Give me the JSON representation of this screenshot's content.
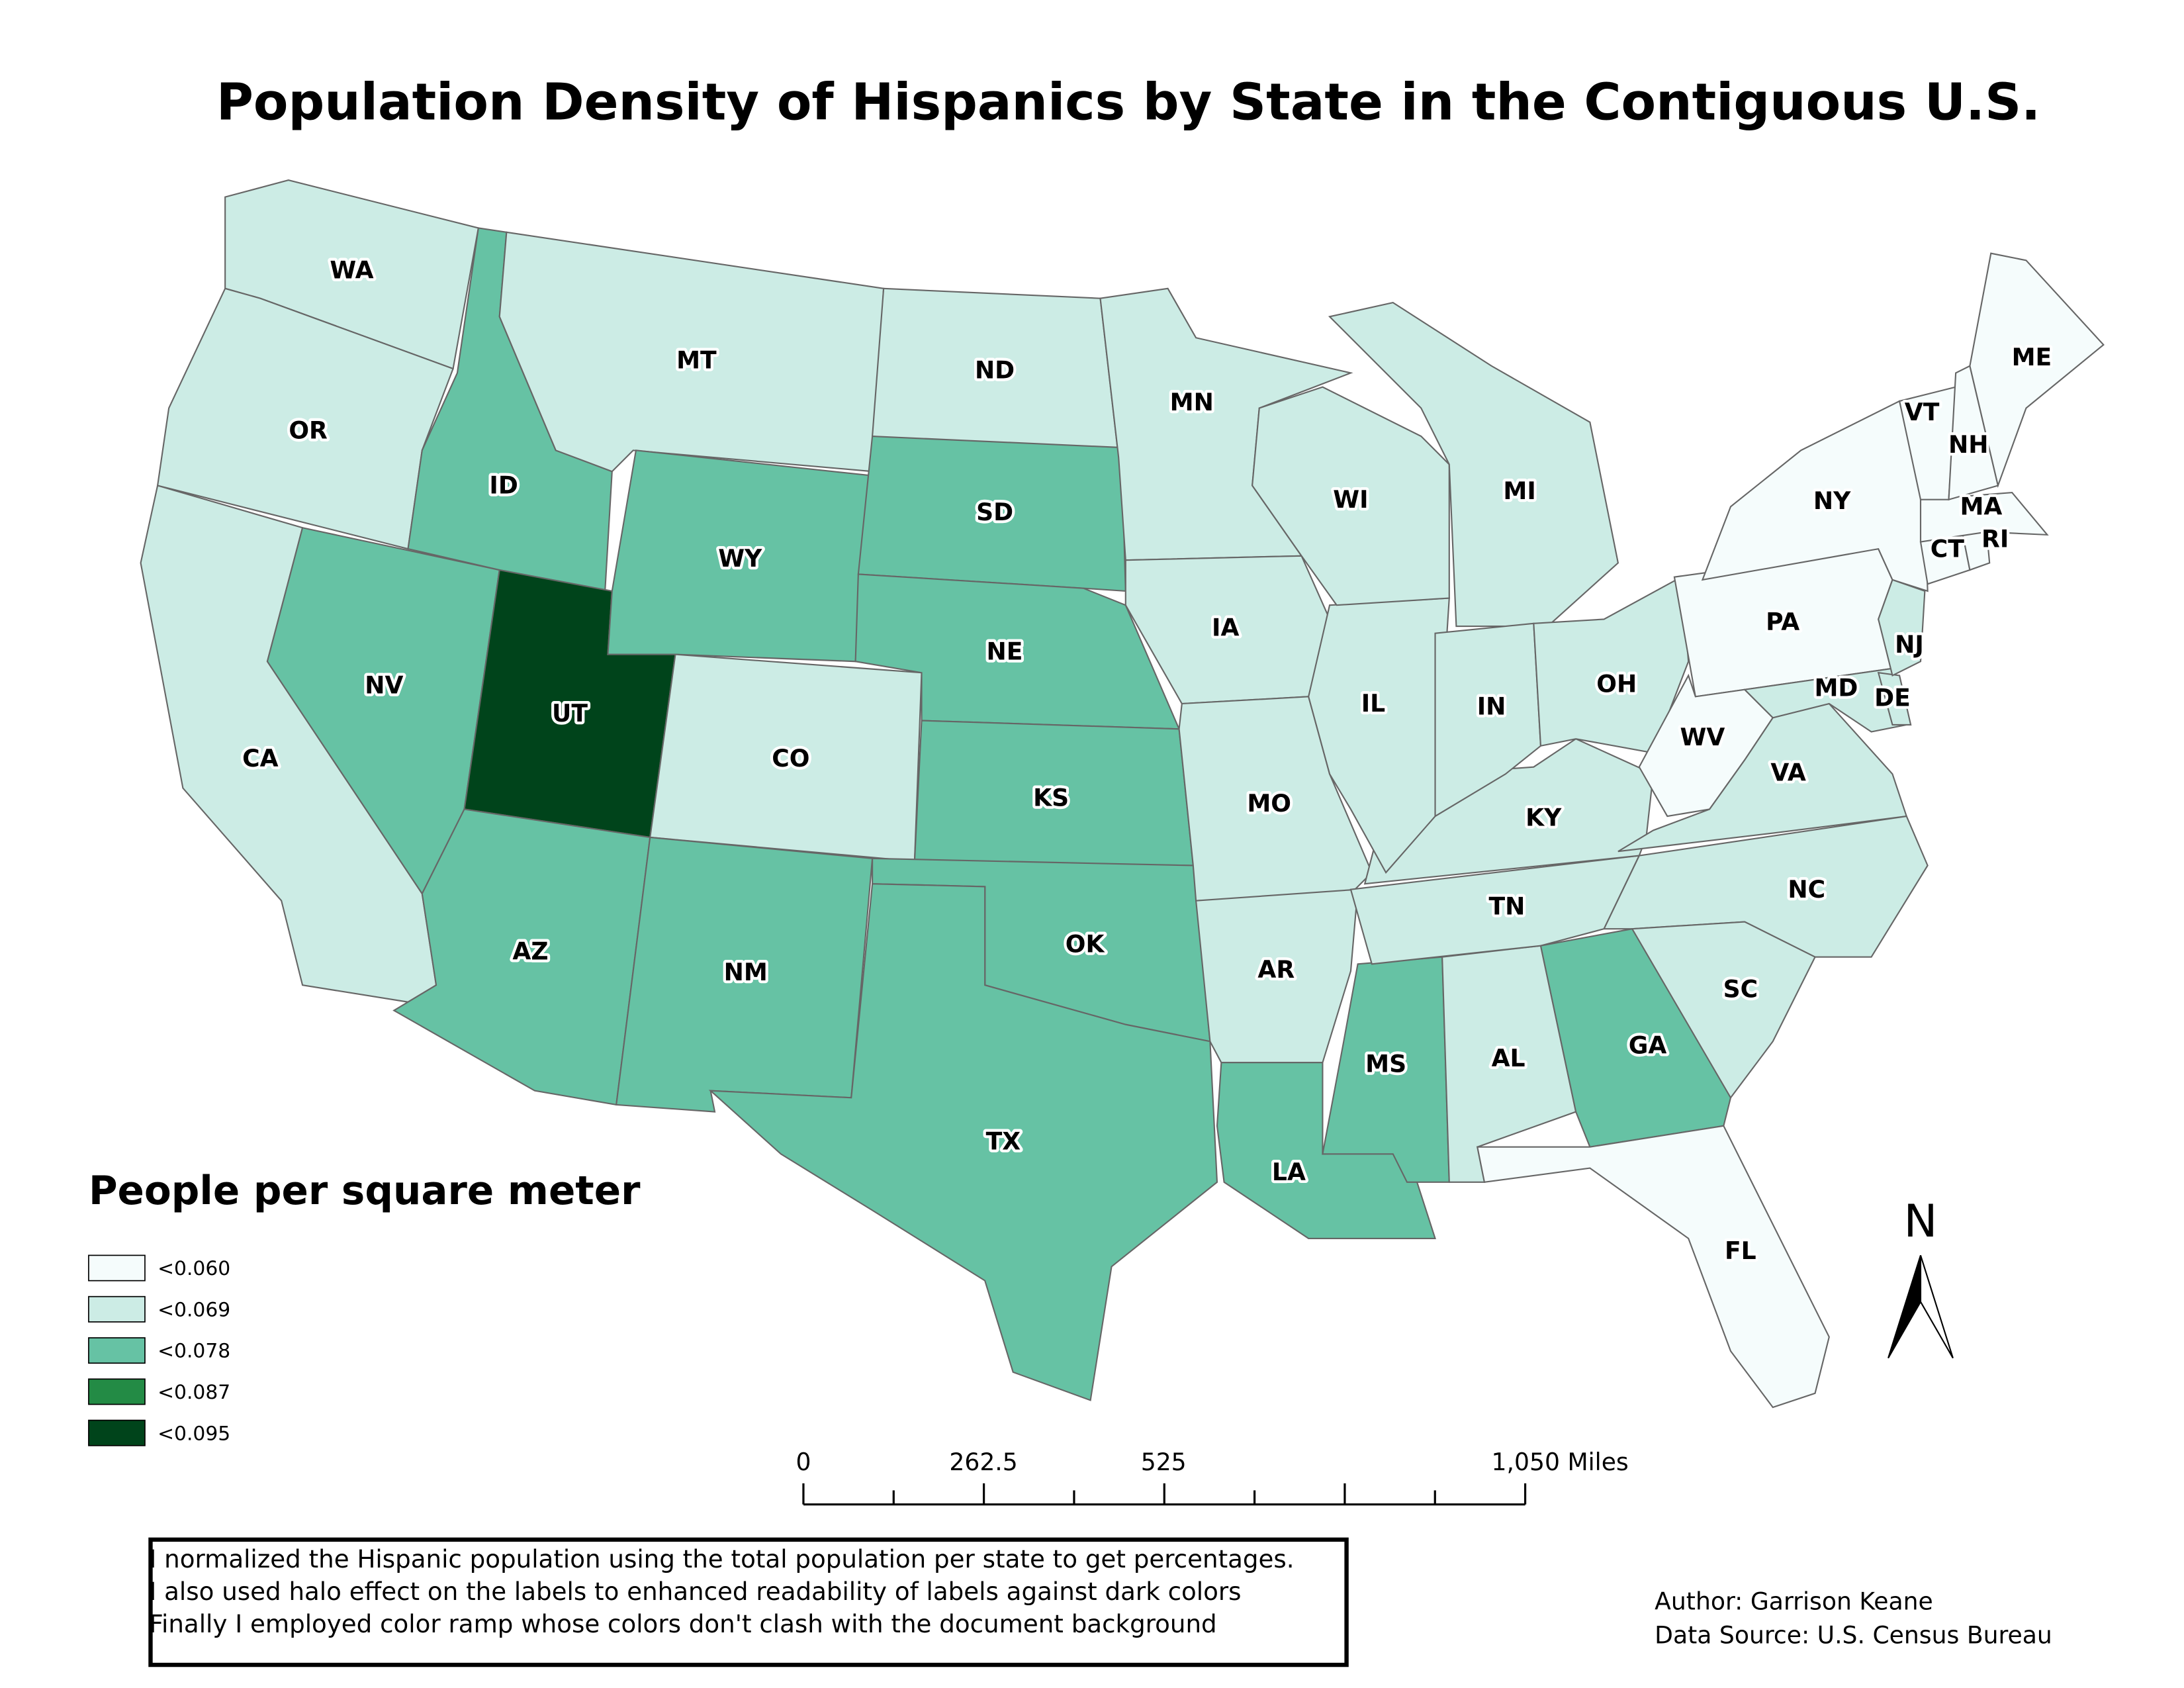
{
  "title": "Population Density of Hispanics by State in the Contiguous U.S.",
  "legend": {
    "title": "People per square meter",
    "items": [
      {
        "label": "<0.060",
        "color": "#f5fcfc"
      },
      {
        "label": "<0.069",
        "color": "#ccece5"
      },
      {
        "label": "<0.078",
        "color": "#66c2a4"
      },
      {
        "label": "<0.087",
        "color": "#238b45"
      },
      {
        "label": "<0.095",
        "color": "#00441b"
      }
    ]
  },
  "states": [
    {
      "label": "WA",
      "color": "#ccece5"
    },
    {
      "label": "OR",
      "color": "#ccece5"
    },
    {
      "label": "CA",
      "color": "#ccece5"
    },
    {
      "label": "NV",
      "color": "#66c2a4"
    },
    {
      "label": "ID",
      "color": "#66c2a4"
    },
    {
      "label": "MT",
      "color": "#ccece5"
    },
    {
      "label": "UT",
      "color": "#00441b"
    },
    {
      "label": "WY",
      "color": "#66c2a4"
    },
    {
      "label": "CO",
      "color": "#ccece5"
    },
    {
      "label": "AZ",
      "color": "#66c2a4"
    },
    {
      "label": "NM",
      "color": "#66c2a4"
    },
    {
      "label": "ND",
      "color": "#ccece5"
    },
    {
      "label": "SD",
      "color": "#66c2a4"
    },
    {
      "label": "NE",
      "color": "#66c2a4"
    },
    {
      "label": "KS",
      "color": "#66c2a4"
    },
    {
      "label": "OK",
      "color": "#66c2a4"
    },
    {
      "label": "TX",
      "color": "#66c2a4"
    },
    {
      "label": "MN",
      "color": "#ccece5"
    },
    {
      "label": "IA",
      "color": "#ccece5"
    },
    {
      "label": "MO",
      "color": "#ccece5"
    },
    {
      "label": "AR",
      "color": "#ccece5"
    },
    {
      "label": "LA",
      "color": "#66c2a4"
    },
    {
      "label": "MS",
      "color": "#66c2a4"
    },
    {
      "label": "AL",
      "color": "#ccece5"
    },
    {
      "label": "TN",
      "color": "#ccece5"
    },
    {
      "label": "KY",
      "color": "#ccece5"
    },
    {
      "label": "IL",
      "color": "#ccece5"
    },
    {
      "label": "WI",
      "color": "#ccece5"
    },
    {
      "label": "MI",
      "color": "#ccece5"
    },
    {
      "label": "IN",
      "color": "#ccece5"
    },
    {
      "label": "OH",
      "color": "#ccece5"
    },
    {
      "label": "PA",
      "color": "#f5fcfc"
    },
    {
      "label": "NY",
      "color": "#f5fcfc"
    },
    {
      "label": "WV",
      "color": "#f5fcfc"
    },
    {
      "label": "VA",
      "color": "#ccece5"
    },
    {
      "label": "NC",
      "color": "#ccece5"
    },
    {
      "label": "SC",
      "color": "#ccece5"
    },
    {
      "label": "GA",
      "color": "#66c2a4"
    },
    {
      "label": "FL",
      "color": "#f5fcfc"
    },
    {
      "label": "MD",
      "color": "#ccece5"
    },
    {
      "label": "DE",
      "color": "#ccece5"
    },
    {
      "label": "NJ",
      "color": "#ccece5"
    },
    {
      "label": "CT",
      "color": "#f5fcfc"
    },
    {
      "label": "RI",
      "color": "#f5fcfc"
    },
    {
      "label": "MA",
      "color": "#f5fcfc"
    },
    {
      "label": "VT",
      "color": "#f5fcfc"
    },
    {
      "label": "NH",
      "color": "#f5fcfc"
    },
    {
      "label": "ME",
      "color": "#f5fcfc"
    }
  ],
  "scale_bar": [
    "0",
    "262.5",
    "525",
    "1,050 Miles"
  ],
  "north_arrow": "N",
  "notes": [
    "I normalized the Hispanic population using the total population per state to get percentages.",
    "I also used halo effect on the labels to enhanced readability of labels against dark colors",
    "Finally I employed color ramp whose colors don't clash with the document background"
  ],
  "author": "Author: Garrison  Keane",
  "source": "Data Source:  U.S. Census Bureau"
}
